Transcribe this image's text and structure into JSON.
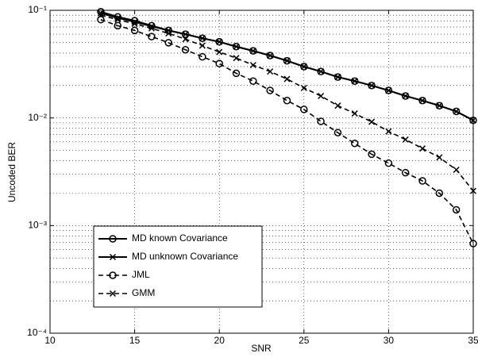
{
  "chart_data": {
    "type": "line",
    "x_label": "SNR",
    "y_label": "Uncoded BER",
    "x": [
      13,
      14,
      15,
      16,
      17,
      18,
      19,
      20,
      21,
      22,
      23,
      24,
      25,
      26,
      27,
      28,
      29,
      30,
      31,
      32,
      33,
      34,
      35
    ],
    "series": [
      {
        "name": "MD known Covariance",
        "color": "#000000",
        "dash": false,
        "marker": "o",
        "values": [
          0.097,
          0.087,
          0.08,
          0.072,
          0.065,
          0.06,
          0.055,
          0.051,
          0.046,
          0.042,
          0.038,
          0.034,
          0.03,
          0.027,
          0.024,
          0.022,
          0.02,
          0.018,
          0.016,
          0.0145,
          0.013,
          0.0115,
          0.0095
        ]
      },
      {
        "name": "MD unknown Covariance",
        "color": "#000000",
        "dash": false,
        "marker": "x",
        "values": [
          0.094,
          0.085,
          0.078,
          0.071,
          0.065,
          0.06,
          0.055,
          0.051,
          0.046,
          0.042,
          0.038,
          0.034,
          0.03,
          0.027,
          0.024,
          0.022,
          0.02,
          0.018,
          0.016,
          0.0145,
          0.013,
          0.0115,
          0.0095
        ]
      },
      {
        "name": "JML",
        "color": "#000000",
        "dash": true,
        "marker": "o",
        "values": [
          0.082,
          0.072,
          0.065,
          0.057,
          0.05,
          0.043,
          0.037,
          0.032,
          0.026,
          0.022,
          0.018,
          0.0145,
          0.012,
          0.0093,
          0.0073,
          0.0058,
          0.0046,
          0.0038,
          0.0031,
          0.0026,
          0.002,
          0.0014,
          0.00068
        ]
      },
      {
        "name": "GMM",
        "color": "#000000",
        "dash": true,
        "marker": "x",
        "values": [
          0.09,
          0.082,
          0.075,
          0.068,
          0.061,
          0.054,
          0.047,
          0.041,
          0.036,
          0.031,
          0.027,
          0.023,
          0.019,
          0.016,
          0.013,
          0.011,
          0.0092,
          0.0075,
          0.0063,
          0.0052,
          0.0043,
          0.0033,
          0.0021
        ]
      }
    ],
    "xlim": [
      10,
      35
    ],
    "xticks": [
      10,
      15,
      20,
      25,
      30,
      35
    ],
    "ylim": [
      0.0001,
      0.1
    ],
    "yticks": [
      {
        "value": 0.0001,
        "label": "10⁻⁴"
      },
      {
        "value": 0.001,
        "label": "10⁻³"
      },
      {
        "value": 0.01,
        "label": "10⁻²"
      },
      {
        "value": 0.1,
        "label": "10⁻¹"
      }
    ],
    "ylog": true,
    "grid": true,
    "legend": "lower left"
  }
}
